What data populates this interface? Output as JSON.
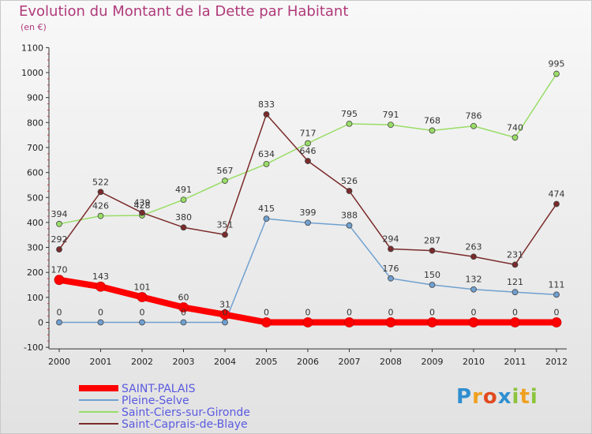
{
  "header": {
    "title": "Evolution du Montant de la Dette par Habitant",
    "subtitle": "(en €)"
  },
  "logo": {
    "text": "Proxiti"
  },
  "chart_data": {
    "type": "line",
    "title": "Evolution du Montant de la Dette par Habitant",
    "subtitle": "(en €)",
    "x": [
      "2000",
      "2001",
      "2002",
      "2003",
      "2004",
      "2005",
      "2006",
      "2007",
      "2008",
      "2009",
      "2010",
      "2011",
      "2012"
    ],
    "yticks": [
      -100,
      0,
      100,
      200,
      300,
      400,
      500,
      600,
      700,
      800,
      900,
      1000,
      1100
    ],
    "ylim": [
      -100,
      1100
    ],
    "grid": false,
    "legend_position": "bottom-left",
    "series": [
      {
        "name": "SAINT-PALAIS",
        "color": "#ff0000",
        "values": [
          170,
          143,
          101,
          60,
          31,
          0,
          0,
          0,
          0,
          0,
          0,
          0,
          0
        ]
      },
      {
        "name": "Pleine-Selve",
        "color": "#6fa0d0",
        "values": [
          0,
          0,
          0,
          0,
          0,
          415,
          399,
          388,
          176,
          150,
          132,
          121,
          111
        ]
      },
      {
        "name": "Saint-Ciers-sur-Gironde",
        "color": "#99dd66",
        "values": [
          394,
          426,
          428,
          491,
          567,
          634,
          717,
          795,
          791,
          768,
          786,
          740,
          995
        ]
      },
      {
        "name": "Saint-Caprais-de-Blaye",
        "color": "#7a2a2a",
        "values": [
          292,
          522,
          439,
          380,
          351,
          833,
          646,
          526,
          294,
          287,
          263,
          231,
          474
        ]
      }
    ]
  }
}
